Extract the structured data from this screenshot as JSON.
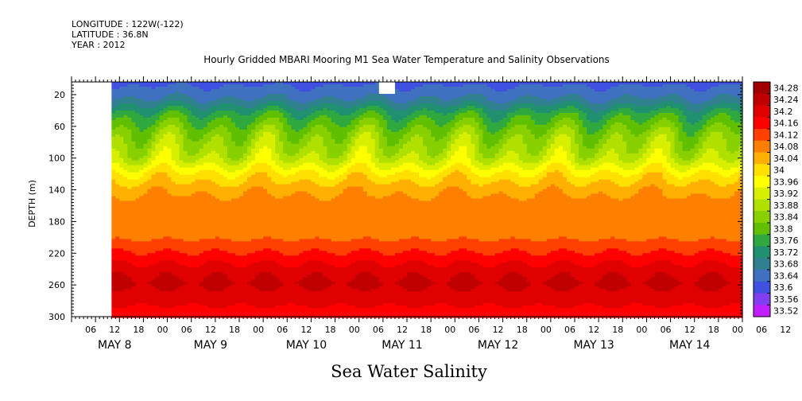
{
  "header": {
    "longitude": "LONGITUDE : 122W(-122)",
    "latitude": "LATITUDE : 36.8N",
    "year": "YEAR : 2012"
  },
  "chart_data": {
    "type": "heatmap",
    "title": "Hourly Gridded MBARI Mooring M1 Sea Water Temperature and Salinity Observations",
    "bottom_title": "Sea Water Salinity",
    "ylabel": "DEPTH (m)",
    "y_ticks": [
      20,
      60,
      100,
      140,
      180,
      220,
      260,
      300
    ],
    "ylim": [
      300,
      4
    ],
    "x_hour_ticks": [
      "06",
      "12",
      "18",
      "00",
      "06",
      "12",
      "18",
      "00",
      "06",
      "12",
      "18",
      "00",
      "06",
      "12",
      "18",
      "00",
      "06",
      "12",
      "18",
      "00",
      "06",
      "12",
      "18",
      "00",
      "06",
      "12",
      "18",
      "00",
      "06",
      "12",
      "18",
      "00"
    ],
    "x_day_labels": [
      "MAY  8",
      "MAY  9",
      "MAY 10",
      "MAY 11",
      "MAY 12",
      "MAY 13",
      "MAY 14"
    ],
    "x_range_hours_from_may8_00": [
      0,
      168
    ],
    "data_start_hour": 10,
    "colorbar": {
      "levels": [
        "34.28",
        "34.24",
        "34.2",
        "34.16",
        "34.12",
        "34.08",
        "34.04",
        "34",
        "33.96",
        "33.92",
        "33.88",
        "33.84",
        "33.8",
        "33.76",
        "33.72",
        "33.68",
        "33.64",
        "33.6",
        "33.56",
        "33.52"
      ],
      "colors": [
        "#a00000",
        "#c00000",
        "#e00000",
        "#ff0000",
        "#ff4000",
        "#ff8000",
        "#ffb000",
        "#ffe000",
        "#ffff00",
        "#d8f000",
        "#b0e000",
        "#88d000",
        "#60c000",
        "#30a840",
        "#209070",
        "#308090",
        "#4070c0",
        "#4050e0",
        "#8040f0",
        "#c020ff"
      ]
    },
    "profile": [
      {
        "depth": 5,
        "value": 33.63
      },
      {
        "depth": 25,
        "value": 33.68
      },
      {
        "depth": 45,
        "value": 33.78
      },
      {
        "depth": 70,
        "value": 33.86
      },
      {
        "depth": 100,
        "value": 33.92
      },
      {
        "depth": 120,
        "value": 34.01
      },
      {
        "depth": 140,
        "value": 34.07
      },
      {
        "depth": 160,
        "value": 34.1
      },
      {
        "depth": 190,
        "value": 34.09
      },
      {
        "depth": 215,
        "value": 34.15
      },
      {
        "depth": 240,
        "value": 34.22
      },
      {
        "depth": 258,
        "value": 34.25
      },
      {
        "depth": 280,
        "value": 34.21
      },
      {
        "depth": 300,
        "value": 34.18
      }
    ]
  }
}
